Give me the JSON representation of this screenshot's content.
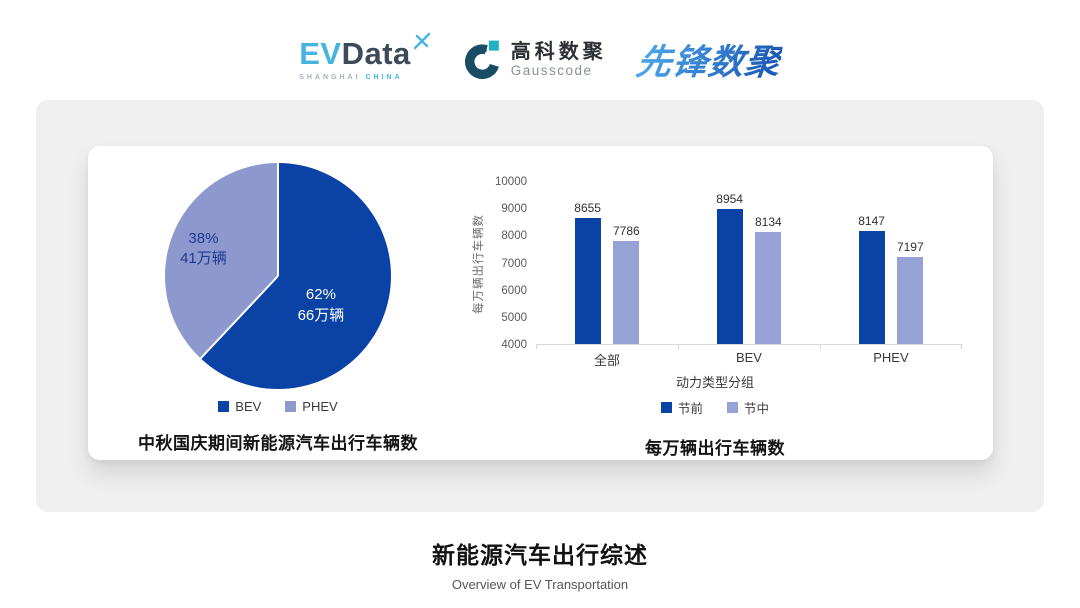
{
  "header": {
    "evdata": {
      "part1": "EV",
      "part2": "Data",
      "sub1": "SHANGHAI",
      "sub2": "CHINA"
    },
    "gausscode": {
      "name_cn": "高科数聚",
      "name_en": "Gausscode"
    },
    "pioneer": {
      "name": "先锋数聚"
    }
  },
  "colors": {
    "pre_holiday": "#0a42a6",
    "mid_holiday": "#97a2d6",
    "pie_bev": "#0a42a6",
    "pie_phev": "#8d98cf",
    "panel_bg": "#efefef",
    "evdata_cyan": "#45b5e0",
    "evdata_dark": "#3d4a5a",
    "gauss_dark": "#1b4c66",
    "gauss_cyan": "#1fb0c4",
    "pioneer_blue_1": "#4aa3e8",
    "pioneer_blue_2": "#1d5cb8"
  },
  "chart_data": [
    {
      "type": "pie",
      "title": "中秋国庆期间新能源汽车出行车辆数",
      "labels": [
        "BEV",
        "PHEV"
      ],
      "values_pct": [
        62,
        38
      ],
      "values_label": [
        "66万辆",
        "41万辆"
      ],
      "slice_labels": [
        {
          "line1": "62%",
          "line2": "66万辆"
        },
        {
          "line1": "38%",
          "line2": "41万辆"
        }
      ],
      "colors": [
        "#0a42a6",
        "#8d98cf"
      ],
      "start_angle_deg": 0,
      "legend_position": "bottom"
    },
    {
      "type": "bar",
      "title": "每万辆出行车辆数",
      "xlabel": "动力类型分组",
      "ylabel": "每万辆出行车辆数",
      "categories": [
        "全部",
        "BEV",
        "PHEV"
      ],
      "series": [
        {
          "name": "节前",
          "color": "#0a42a6",
          "values": [
            8655,
            8954,
            8147
          ]
        },
        {
          "name": "节中",
          "color": "#97a2d6",
          "values": [
            7786,
            8134,
            7197
          ]
        }
      ],
      "ylim": [
        4000,
        10000
      ],
      "ytick_step": 1000,
      "grid": false,
      "legend_position": "bottom"
    }
  ],
  "footer": {
    "title": "新能源汽车出行综述",
    "subtitle": "Overview of EV Transportation"
  }
}
